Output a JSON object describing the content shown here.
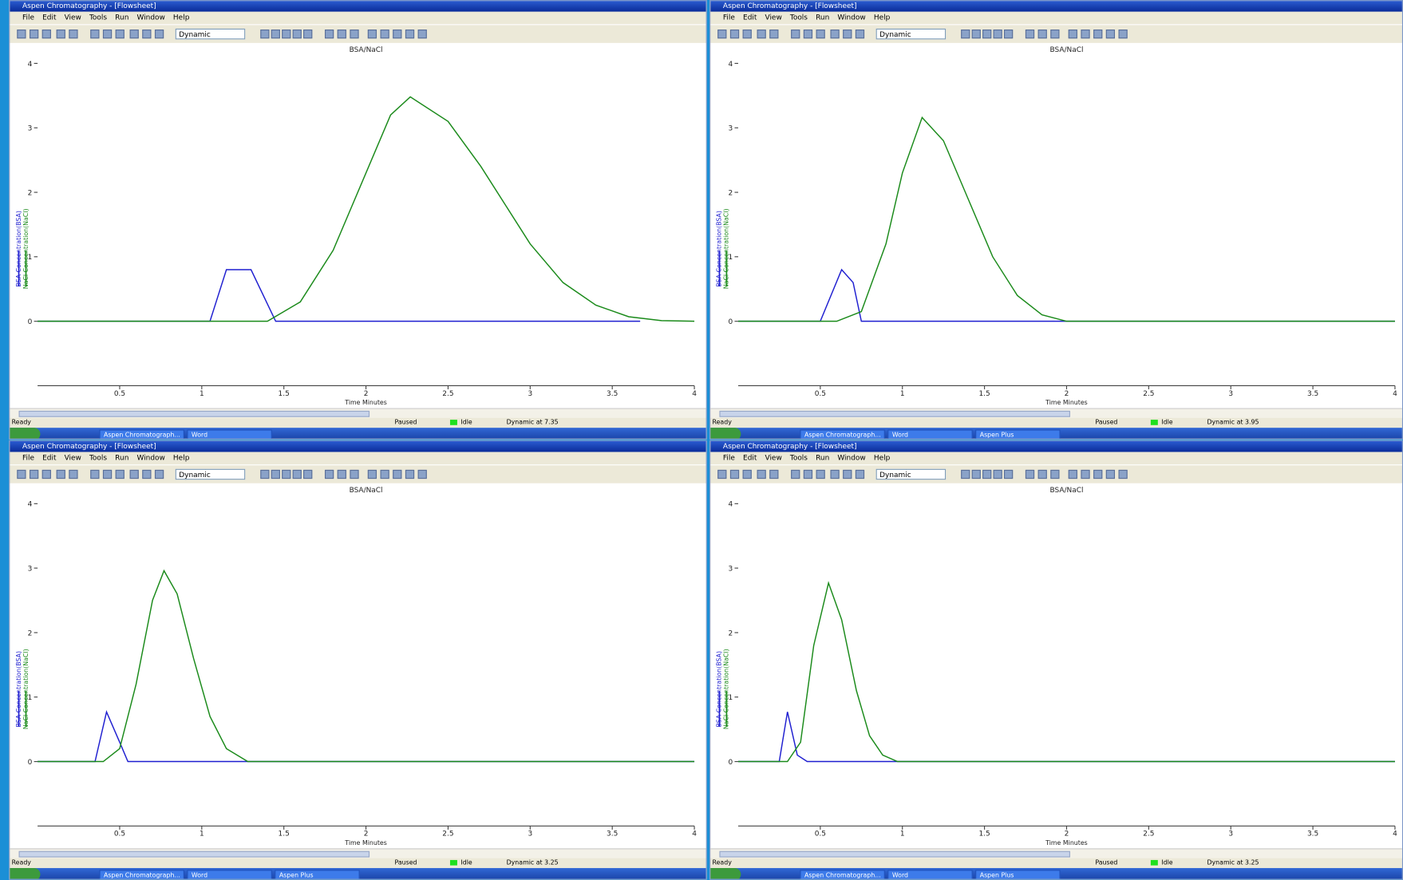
{
  "windows": [
    {
      "title_bar": "Aspen Chromatography - [Flowsheet]",
      "menu": [
        "File",
        "Edit",
        "View",
        "Tools",
        "Run",
        "Window",
        "Help"
      ],
      "toolbar_mode": "Dynamic",
      "chart": {
        "title": "BSA/NaCl",
        "y_labels": [
          "BSA Concentration(BSA)",
          "NaCl Concentration(NaCl)"
        ],
        "x_label": "Time Minutes",
        "xlim": [
          0,
          4
        ],
        "xticks": [
          0.5,
          1,
          1.5,
          2,
          2.5,
          3,
          3.5,
          4
        ],
        "ylim": [
          -1,
          4.15
        ],
        "yticks": [
          0,
          1,
          2,
          3,
          4
        ],
        "series": [
          {
            "color": "#1f1fd0",
            "x": [
              0,
              1.05,
              1.15,
              1.3,
              1.45,
              3.67
            ],
            "values": [
              0,
              0,
              0.8,
              0.8,
              0,
              0
            ]
          },
          {
            "color": "#1a8a1a",
            "x": [
              0,
              1.4,
              1.6,
              1.8,
              2.0,
              2.15,
              2.27,
              2.5,
              2.7,
              3.0,
              3.2,
              3.4,
              3.6,
              3.8,
              4.0
            ],
            "values": [
              0,
              0,
              0.3,
              1.1,
              2.3,
              3.2,
              3.48,
              3.1,
              2.4,
              1.2,
              0.6,
              0.25,
              0.07,
              0.01,
              0
            ]
          }
        ]
      },
      "status": {
        "ready": "Ready",
        "paused": "Paused",
        "idle": "Idle",
        "run": "Dynamic at 7.35"
      },
      "taskbar": [
        "Aspen Chromatograph...",
        "Word"
      ]
    },
    {
      "title_bar": "Aspen Chromatography - [Flowsheet]",
      "menu": [
        "File",
        "Edit",
        "View",
        "Tools",
        "Run",
        "Window",
        "Help"
      ],
      "toolbar_mode": "Dynamic",
      "chart": {
        "title": "BSA/NaCl",
        "y_labels": [
          "BSA Concentration(BSA)",
          "NaCl Concentration(NaCl)"
        ],
        "x_label": "Time Minutes",
        "xlim": [
          0,
          4
        ],
        "xticks": [
          0.5,
          1,
          1.5,
          2,
          2.5,
          3,
          3.5,
          4
        ],
        "ylim": [
          -1,
          4.15
        ],
        "yticks": [
          0,
          1,
          2,
          3,
          4
        ],
        "series": [
          {
            "color": "#1f1fd0",
            "x": [
              0,
              0.5,
              0.63,
              0.7,
              0.75,
              4
            ],
            "values": [
              0,
              0,
              0.8,
              0.6,
              0,
              0
            ]
          },
          {
            "color": "#1a8a1a",
            "x": [
              0,
              0.6,
              0.75,
              0.9,
              1.0,
              1.12,
              1.25,
              1.4,
              1.55,
              1.7,
              1.85,
              2.0,
              4.0
            ],
            "values": [
              0,
              0,
              0.15,
              1.2,
              2.3,
              3.16,
              2.8,
              1.9,
              1.0,
              0.4,
              0.1,
              0,
              0
            ]
          }
        ]
      },
      "status": {
        "ready": "Ready",
        "paused": "Paused",
        "idle": "Idle",
        "run": "Dynamic at 3.95"
      },
      "taskbar": [
        "Aspen Chromatograph...",
        "Word",
        "Aspen Plus"
      ]
    },
    {
      "title_bar": "Aspen Chromatography - [Flowsheet]",
      "menu": [
        "File",
        "Edit",
        "View",
        "Tools",
        "Run",
        "Window",
        "Help"
      ],
      "toolbar_mode": "Dynamic",
      "chart": {
        "title": "BSA/NaCl",
        "y_labels": [
          "BSA Concentration(BSA)",
          "NaCl Concentration(NaCl)"
        ],
        "x_label": "Time Minutes",
        "xlim": [
          0,
          4
        ],
        "xticks": [
          0.5,
          1,
          1.5,
          2,
          2.5,
          3,
          3.5,
          4
        ],
        "ylim": [
          -1,
          4.15
        ],
        "yticks": [
          0,
          1,
          2,
          3,
          4
        ],
        "series": [
          {
            "color": "#1f1fd0",
            "x": [
              0,
              0.35,
              0.42,
              0.5,
              0.55,
              4
            ],
            "values": [
              0,
              0,
              0.77,
              0.3,
              0,
              0
            ]
          },
          {
            "color": "#1a8a1a",
            "x": [
              0,
              0.4,
              0.5,
              0.6,
              0.7,
              0.77,
              0.85,
              0.95,
              1.05,
              1.15,
              1.28,
              4.0
            ],
            "values": [
              0,
              0,
              0.2,
              1.2,
              2.5,
              2.96,
              2.6,
              1.6,
              0.7,
              0.2,
              0,
              0
            ]
          }
        ]
      },
      "status": {
        "ready": "Ready",
        "paused": "Paused",
        "idle": "Idle",
        "run": "Dynamic at 3.25"
      },
      "taskbar": [
        "Aspen Chromatograph...",
        "Word",
        "Aspen Plus"
      ]
    },
    {
      "title_bar": "Aspen Chromatography - [Flowsheet]",
      "menu": [
        "File",
        "Edit",
        "View",
        "Tools",
        "Run",
        "Window",
        "Help"
      ],
      "toolbar_mode": "Dynamic",
      "chart": {
        "title": "BSA/NaCl",
        "y_labels": [
          "BSA Concentration(BSA)",
          "NaCl Concentration(NaCl)"
        ],
        "x_label": "Time Minutes",
        "xlim": [
          0,
          4
        ],
        "xticks": [
          0.5,
          1,
          1.5,
          2,
          2.5,
          3,
          3.5,
          4
        ],
        "ylim": [
          -1,
          4.15
        ],
        "yticks": [
          0,
          1,
          2,
          3,
          4
        ],
        "series": [
          {
            "color": "#1f1fd0",
            "x": [
              0,
              0.25,
              0.3,
              0.36,
              0.42,
              4
            ],
            "values": [
              0,
              0,
              0.77,
              0.1,
              0,
              0
            ]
          },
          {
            "color": "#1a8a1a",
            "x": [
              0,
              0.3,
              0.38,
              0.46,
              0.55,
              0.63,
              0.72,
              0.8,
              0.88,
              0.97,
              4.0
            ],
            "values": [
              0,
              0,
              0.3,
              1.8,
              2.77,
              2.2,
              1.1,
              0.4,
              0.1,
              0,
              0
            ]
          }
        ]
      },
      "status": {
        "ready": "Ready",
        "paused": "Paused",
        "idle": "Idle",
        "run": "Dynamic at 3.25"
      },
      "taskbar": [
        "Aspen Chromatograph...",
        "Word",
        "Aspen Plus"
      ]
    }
  ]
}
